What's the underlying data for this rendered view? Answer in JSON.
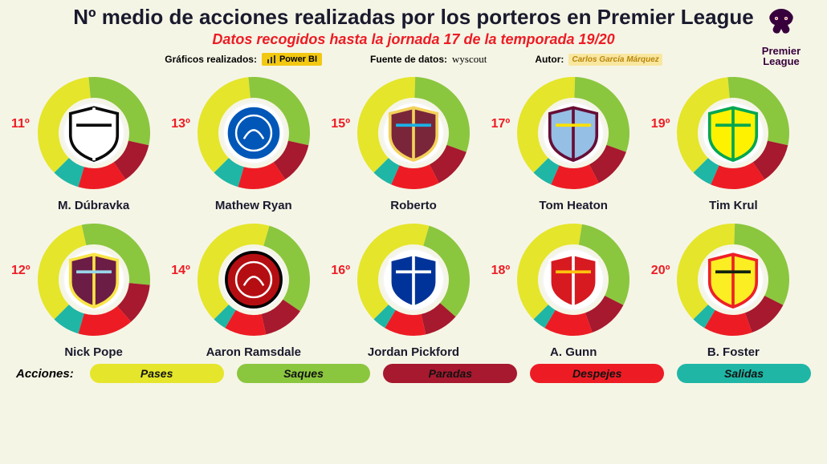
{
  "title": "Nº medio de acciones realizadas por los porteros en Premier League",
  "subtitle": "Datos recogidos hasta la jornada 17 de la temporada 19/20",
  "meta": {
    "charts_label": "Gráficos realizados:",
    "charts_tool": "Power BI",
    "source_label": "Fuente de datos:",
    "source_value": "wyscout",
    "author_label": "Autor:",
    "author_value": "Carlos García Márquez"
  },
  "pl_logo": {
    "text_top": "Premier",
    "text_bottom": "League",
    "color": "#37003c"
  },
  "colors": {
    "pases": "#e5e52b",
    "saques": "#8bc63f",
    "paradas": "#a6192e",
    "despejes": "#ed1c24",
    "salidas": "#1fb6a6",
    "background": "#f5f5e6",
    "rank": "#ed1c24",
    "text": "#1a1a2e"
  },
  "legend": {
    "title": "Acciones:",
    "items": [
      {
        "key": "pases",
        "label": "Pases"
      },
      {
        "key": "saques",
        "label": "Saques"
      },
      {
        "key": "paradas",
        "label": "Paradas"
      },
      {
        "key": "despejes",
        "label": "Despejes"
      },
      {
        "key": "salidas",
        "label": "Salidas"
      }
    ]
  },
  "donut": {
    "outer_radius": 70,
    "inner_radius": 44,
    "start_angle_deg": -135
  },
  "keepers": [
    {
      "rank": "11º",
      "name": "M. Dúbravka",
      "club": "Newcastle",
      "segments": {
        "pases": 36,
        "saques": 30,
        "paradas": 12,
        "despejes": 14,
        "salidas": 8
      },
      "crest": {
        "shape": "shield",
        "bg": "#ffffff",
        "stroke": "#0b0b0b",
        "accent": "#0b0b0b",
        "stripe": "#ffffff"
      }
    },
    {
      "rank": "13º",
      "name": "Mathew Ryan",
      "club": "Brighton",
      "segments": {
        "pases": 36,
        "saques": 30,
        "paradas": 12,
        "despejes": 14,
        "salidas": 8
      },
      "crest": {
        "shape": "circle",
        "bg": "#0057b8",
        "stroke": "#ffffff",
        "accent": "#ffffff"
      }
    },
    {
      "rank": "15º",
      "name": "Roberto",
      "club": "West Ham",
      "segments": {
        "pases": 38,
        "saques": 30,
        "paradas": 12,
        "despejes": 14,
        "salidas": 6
      },
      "crest": {
        "shape": "shield",
        "bg": "#7a263a",
        "stroke": "#f3d25b",
        "accent": "#1bb1e7",
        "stripe": "#f3d25b"
      }
    },
    {
      "rank": "17º",
      "name": "Tom Heaton",
      "club": "Aston Villa",
      "segments": {
        "pases": 38,
        "saques": 30,
        "paradas": 12,
        "despejes": 14,
        "salidas": 6
      },
      "crest": {
        "shape": "shield",
        "bg": "#95bfe5",
        "stroke": "#670e36",
        "accent": "#fde100",
        "stripe": "#670e36"
      }
    },
    {
      "rank": "19º",
      "name": "Tim Krul",
      "club": "Norwich",
      "segments": {
        "pases": 36,
        "saques": 30,
        "paradas": 12,
        "despejes": 16,
        "salidas": 6
      },
      "crest": {
        "shape": "shield",
        "bg": "#fff200",
        "stroke": "#00a650",
        "accent": "#00a650",
        "stripe": "#00a650"
      }
    },
    {
      "rank": "12º",
      "name": "Nick Pope",
      "club": "Burnley",
      "segments": {
        "pases": 34,
        "saques": 30,
        "paradas": 12,
        "despejes": 16,
        "salidas": 8
      },
      "crest": {
        "shape": "shield",
        "bg": "#6c1d45",
        "stroke": "#f9e547",
        "accent": "#99d6ea",
        "stripe": "#f9e547"
      }
    },
    {
      "rank": "14º",
      "name": "Aaron Ramsdale",
      "club": "Bournemouth",
      "segments": {
        "pases": 42,
        "saques": 30,
        "paradas": 12,
        "despejes": 12,
        "salidas": 4
      },
      "crest": {
        "shape": "circle",
        "bg": "#b50e12",
        "stroke": "#000000",
        "accent": "#ffffff"
      }
    },
    {
      "rank": "16º",
      "name": "Jordan Pickford",
      "club": "Everton",
      "segments": {
        "pases": 42,
        "saques": 32,
        "paradas": 10,
        "despejes": 12,
        "salidas": 4
      },
      "crest": {
        "shape": "shield",
        "bg": "#003399",
        "stroke": "#ffffff",
        "accent": "#ffffff",
        "stripe": "#ffffff"
      }
    },
    {
      "rank": "18º",
      "name": "A. Gunn",
      "club": "Southampton",
      "segments": {
        "pases": 40,
        "saques": 30,
        "paradas": 12,
        "despejes": 14,
        "salidas": 4
      },
      "crest": {
        "shape": "shield",
        "bg": "#d71920",
        "stroke": "#ffffff",
        "accent": "#ffc20e",
        "stripe": "#ffffff"
      }
    },
    {
      "rank": "20º",
      "name": "B. Foster",
      "club": "Watford",
      "segments": {
        "pases": 38,
        "saques": 32,
        "paradas": 12,
        "despejes": 14,
        "salidas": 4
      },
      "crest": {
        "shape": "shield",
        "bg": "#fbee23",
        "stroke": "#ed2127",
        "accent": "#11210e",
        "stripe": "#ed2127"
      }
    }
  ]
}
